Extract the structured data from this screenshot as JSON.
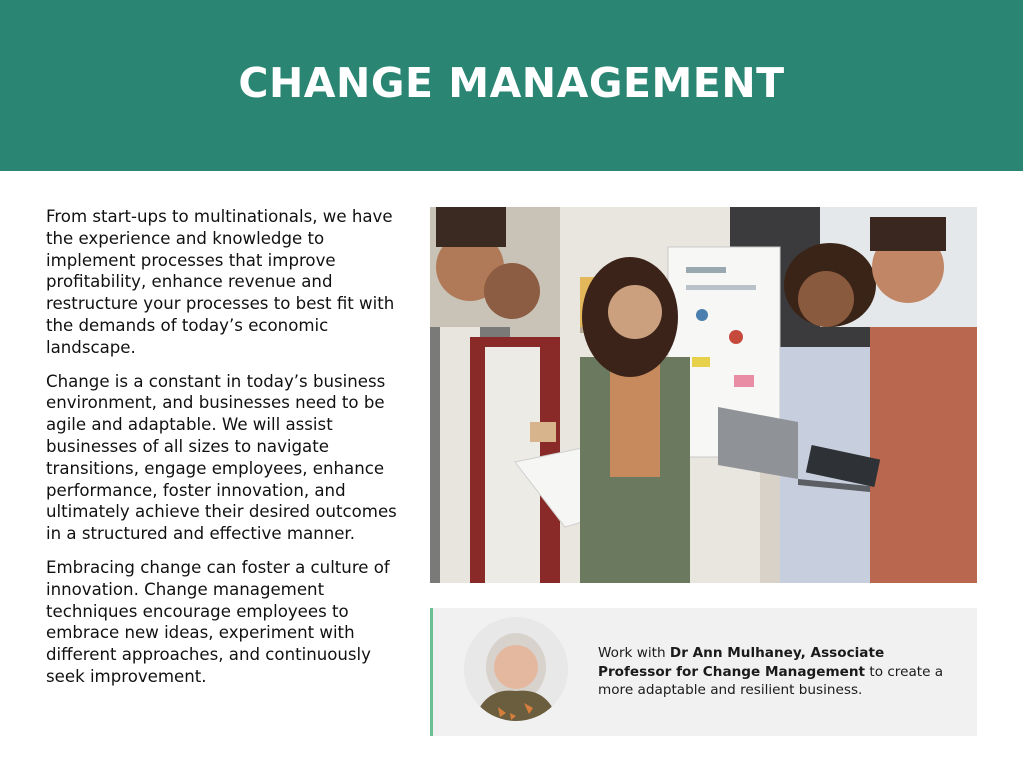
{
  "header": {
    "title": "CHANGE MANAGEMENT",
    "background": "#2a8673"
  },
  "intro": {
    "paragraphs": [
      "From start-ups to multinationals, we have the experience and knowledge to implement processes that improve profitability, enhance revenue and restructure your processes to best fit with the demands of today’s economic landscape.",
      "Change is a constant in today’s business environment, and businesses need to be agile and adaptable. We will assist businesses of all sizes to navigate transitions, engage employees, enhance performance, foster innovation, and ultimately achieve their desired outcomes in a structured and effective manner.",
      "Embracing change can foster a culture of innovation. Change management techniques encourage employees to embrace new ideas, experiment with different approaches, and continuously seek improvement."
    ]
  },
  "callout": {
    "prefix": "Work with ",
    "name": "Dr Ann Mulhaney, Associate Professor for Change Management",
    "suffix": " to create a more adaptable and resilient business.",
    "accent": "#6cbf93"
  },
  "icons": {
    "photo": "team-meeting-photo",
    "avatar": "expert-portrait"
  }
}
